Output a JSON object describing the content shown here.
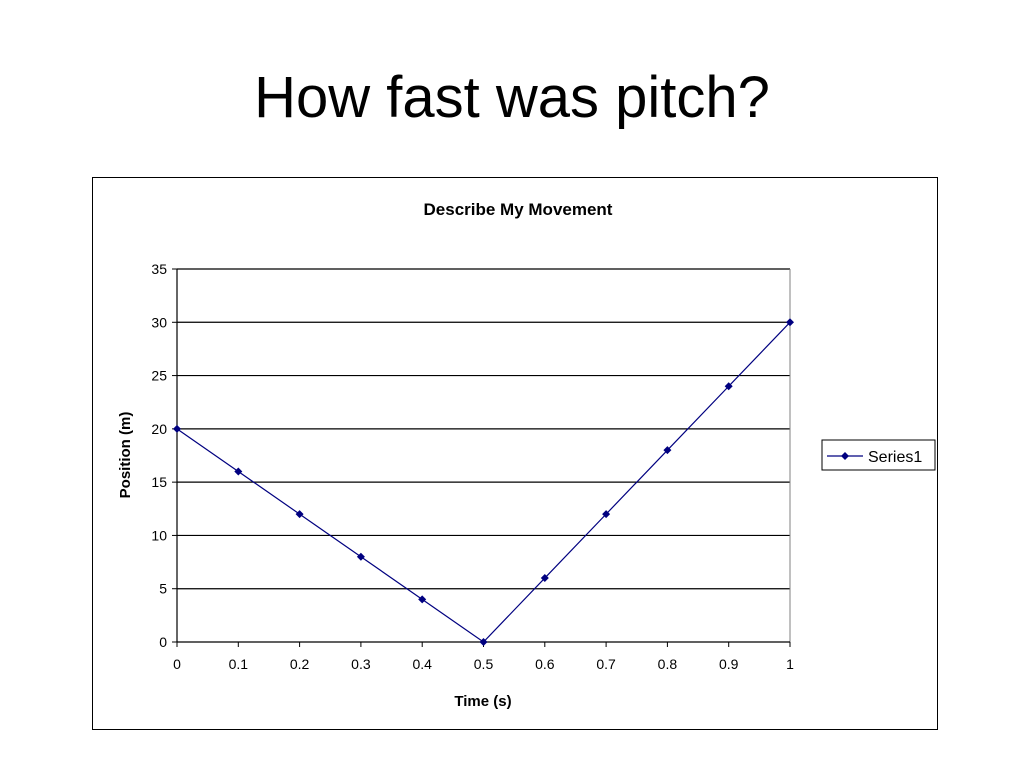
{
  "slide": {
    "title": "How fast was pitch?"
  },
  "chart_data": {
    "type": "line",
    "title": "Describe My Movement",
    "xlabel": "Time (s)",
    "ylabel": "Position (m)",
    "x": [
      0,
      0.1,
      0.2,
      0.3,
      0.4,
      0.5,
      0.6,
      0.7,
      0.8,
      0.9,
      1
    ],
    "xlim": [
      0,
      1
    ],
    "ylim": [
      0,
      35
    ],
    "x_ticks": [
      "0",
      "0.1",
      "0.2",
      "0.3",
      "0.4",
      "0.5",
      "0.6",
      "0.7",
      "0.8",
      "0.9",
      "1"
    ],
    "y_ticks": [
      "0",
      "5",
      "10",
      "15",
      "20",
      "25",
      "30",
      "35"
    ],
    "grid": "horizontal",
    "legend_position": "right",
    "series": [
      {
        "name": "Series1",
        "color": "#000080",
        "marker": "diamond",
        "values": [
          20,
          16,
          12,
          8,
          4,
          0,
          6,
          12,
          18,
          24,
          30
        ]
      }
    ]
  }
}
